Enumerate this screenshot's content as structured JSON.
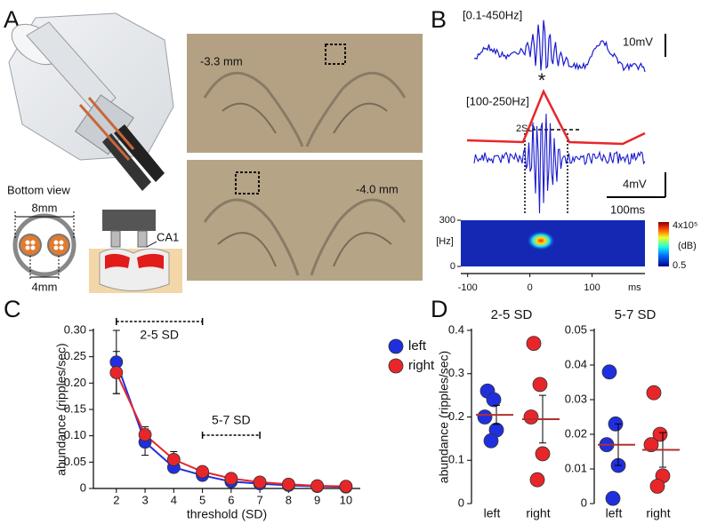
{
  "panel_labels": [
    "A",
    "B",
    "C",
    "D"
  ],
  "panel_a": {
    "bottom_view": "Bottom view",
    "width_label": "8mm",
    "spacing_label": "4mm",
    "region_label": "CA1",
    "slice_labels": [
      "-3.3 mm",
      "-4.0 mm"
    ]
  },
  "panel_b": {
    "raw_label": "[0.1-450Hz]",
    "raw_scale": "10mV",
    "filtered_label": "[100-250Hz]",
    "peak_marker": "*",
    "threshold_label": "2SD",
    "filtered_scale": "4mV",
    "time_scale": "100ms",
    "spectrogram": {
      "xlim": [
        -111,
        185
      ],
      "ylim": [
        0,
        300
      ],
      "xticks": [
        -100,
        0,
        100
      ],
      "yticks": [
        0,
        300
      ],
      "x_unit": "ms",
      "y_unit": "[Hz]",
      "colorbar_max": "4x10⁵",
      "colorbar_unit": "(dB)",
      "colorbar_min": "0.5"
    }
  },
  "chart_data": [
    {
      "type": "line",
      "xlabel": "threshold (SD)",
      "ylabel": "abundance (ripples/sec)",
      "x": [
        2,
        3,
        4,
        5,
        6,
        7,
        8,
        9,
        10
      ],
      "xlim": [
        1.2,
        10.5
      ],
      "xticks": [
        2,
        3,
        4,
        5,
        6,
        7,
        8,
        9,
        10
      ],
      "ylim": [
        0,
        0.3
      ],
      "yticks": [
        0,
        0.05,
        {
          "value": 0.1,
          "label": "0.10"
        },
        0.15,
        {
          "value": 0.2,
          "label": "0.20"
        },
        0.25,
        {
          "value": 0.3,
          "label": "0.30"
        }
      ],
      "legend": "upper right",
      "series": [
        {
          "name": "left",
          "color": "#1f2fe0",
          "values": [
            0.24,
            0.088,
            0.04,
            0.025,
            0.013,
            0.009,
            0.006,
            0.004,
            0.003
          ],
          "errors": [
            0.06,
            0.025,
            0.008,
            0.006,
            0.003,
            0.002,
            0.001,
            0.001,
            0.001
          ]
        },
        {
          "name": "right",
          "color": "#e8262a",
          "values": [
            0.22,
            0.102,
            0.055,
            0.032,
            0.019,
            0.012,
            0.008,
            0.005,
            0.004
          ],
          "errors": [
            0.04,
            0.015,
            0.015,
            0.007,
            0.004,
            0.003,
            0.002,
            0.001,
            0.001
          ]
        }
      ],
      "brackets": [
        {
          "label": "2-5 SD",
          "span": [
            2,
            5
          ]
        },
        {
          "label": "5-7 SD",
          "span": [
            5,
            7
          ]
        }
      ]
    },
    {
      "type": "strip",
      "title": "2-5 SD",
      "ylabel": "abundance (ripples/sec)",
      "categories": [
        "left",
        "right"
      ],
      "ylim": [
        0,
        0.4
      ],
      "yticks": [
        0,
        0.1,
        0.2,
        0.3,
        0.4
      ],
      "mean_color": "#b0302e",
      "groups": [
        {
          "color": "#1f2fe0",
          "values": [
            0.26,
            0.24,
            0.2,
            0.17,
            0.145
          ],
          "mean": 0.205,
          "sem": 0.022
        },
        {
          "color": "#e8262a",
          "values": [
            0.37,
            0.275,
            0.2,
            0.115,
            0.055
          ],
          "mean": 0.195,
          "sem": 0.055
        }
      ]
    },
    {
      "type": "strip",
      "title": "5-7 SD",
      "categories": [
        "left",
        "right"
      ],
      "ylim": [
        0,
        0.05
      ],
      "yticks": [
        0,
        0.01,
        0.02,
        0.03,
        0.04,
        0.05
      ],
      "mean_color": "#b0302e",
      "groups": [
        {
          "color": "#1f2fe0",
          "values": [
            0.038,
            0.023,
            0.017,
            0.011,
            0.0015
          ],
          "mean": 0.017,
          "sem": 0.006
        },
        {
          "color": "#e8262a",
          "values": [
            0.032,
            0.02,
            0.017,
            0.008,
            0.005
          ],
          "mean": 0.0155,
          "sem": 0.005
        }
      ]
    }
  ]
}
